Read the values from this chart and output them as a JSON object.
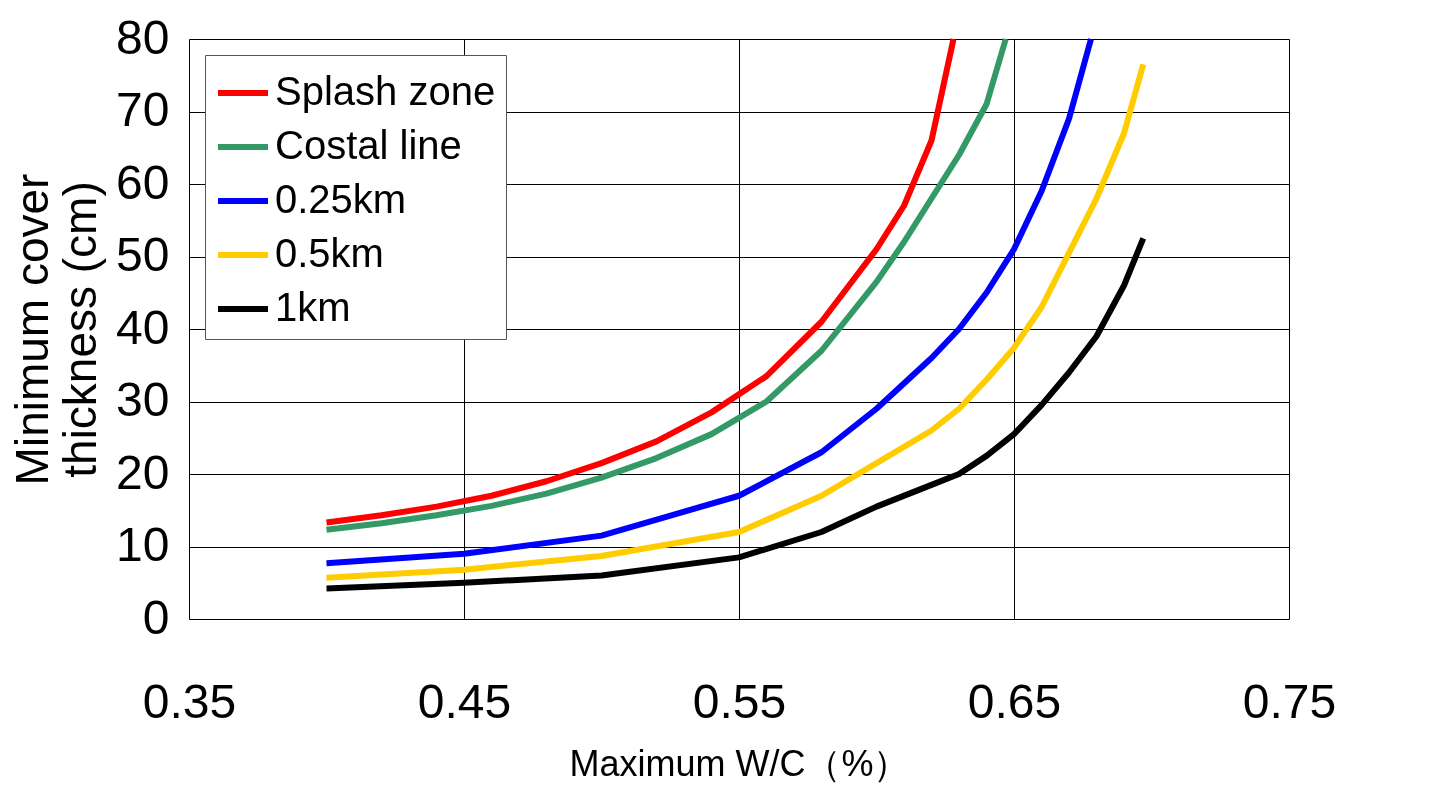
{
  "chart_data": {
    "type": "line",
    "xlabel": "Maximum W/C（%）",
    "ylabel": "Minimum cover\nthickness  (cm)",
    "xlim": [
      0.35,
      0.75
    ],
    "xticks": [
      0.35,
      0.45,
      0.55,
      0.65,
      0.75
    ],
    "ylim": [
      0,
      80
    ],
    "yticks": [
      0,
      10,
      20,
      30,
      40,
      50,
      60,
      70,
      80
    ],
    "grid": true,
    "legend": "top left",
    "line_style": "solid",
    "marker": "none",
    "series": [
      {
        "name": "Splash zone",
        "color": "#ff0000",
        "x": [
          0.4,
          0.42,
          0.44,
          0.46,
          0.48,
          0.5,
          0.52,
          0.54,
          0.56,
          0.58,
          0.6,
          0.61,
          0.62,
          0.628
        ],
        "values": [
          13.3,
          14.3,
          15.5,
          17,
          19,
          21.5,
          24.5,
          28.5,
          33.5,
          41,
          51,
          57,
          66,
          80
        ]
      },
      {
        "name": "Costal line",
        "color": "#339966",
        "x": [
          0.4,
          0.42,
          0.44,
          0.46,
          0.48,
          0.5,
          0.52,
          0.54,
          0.56,
          0.58,
          0.6,
          0.61,
          0.62,
          0.63,
          0.64,
          0.647
        ],
        "values": [
          12.3,
          13.2,
          14.3,
          15.6,
          17.3,
          19.5,
          22.2,
          25.5,
          30,
          37,
          46.5,
          52,
          58,
          64,
          71,
          80
        ]
      },
      {
        "name": "0.25km",
        "color": "#0000ff",
        "x": [
          0.4,
          0.45,
          0.5,
          0.55,
          0.58,
          0.6,
          0.62,
          0.63,
          0.64,
          0.65,
          0.66,
          0.67,
          0.678
        ],
        "values": [
          7.7,
          9,
          11.5,
          17,
          23,
          29,
          36,
          40,
          45,
          51,
          59,
          69,
          80
        ]
      },
      {
        "name": "0.5km",
        "color": "#ffcc00",
        "x": [
          0.4,
          0.45,
          0.5,
          0.55,
          0.58,
          0.6,
          0.62,
          0.63,
          0.64,
          0.65,
          0.66,
          0.67,
          0.68,
          0.69,
          0.697
        ],
        "values": [
          5.7,
          6.8,
          8.7,
          12,
          17,
          21.5,
          26,
          29,
          33,
          37.4,
          43,
          50.5,
          58,
          67,
          76.5
        ]
      },
      {
        "name": "1km",
        "color": "#000000",
        "x": [
          0.4,
          0.45,
          0.5,
          0.55,
          0.58,
          0.6,
          0.62,
          0.63,
          0.64,
          0.65,
          0.66,
          0.67,
          0.68,
          0.69,
          0.697
        ],
        "values": [
          4.2,
          5,
          6,
          8.5,
          12,
          15.5,
          18.5,
          20,
          22.5,
          25.5,
          29.5,
          34,
          39,
          46,
          52.5
        ]
      }
    ]
  }
}
